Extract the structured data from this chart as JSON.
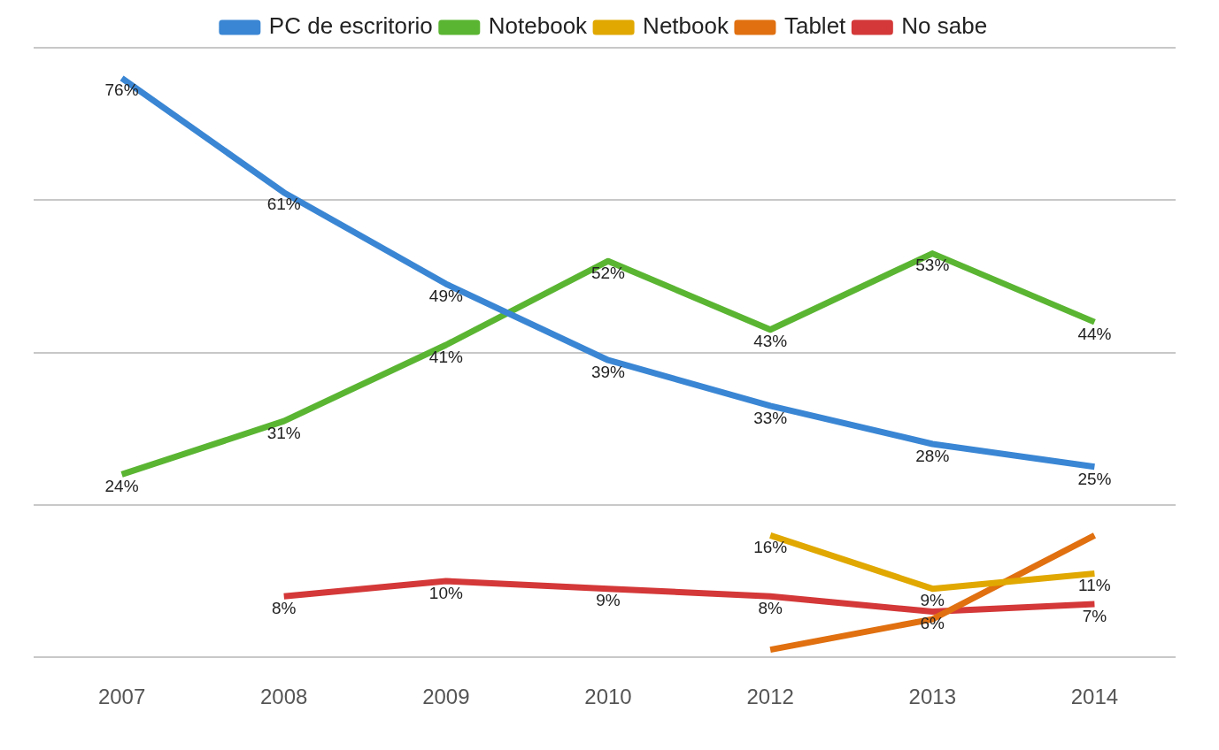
{
  "chart_data": {
    "type": "line",
    "categories": [
      "2007",
      "2008",
      "2009",
      "2010",
      "2012",
      "2013",
      "2014"
    ],
    "series": [
      {
        "name": "PC de escritorio",
        "color": "#3a86d4",
        "values": [
          76,
          61,
          49,
          39,
          33,
          28,
          25
        ],
        "value_labels": [
          "76%",
          "61%",
          "49%",
          "39%",
          "33%",
          "28%",
          "25%"
        ]
      },
      {
        "name": "Notebook",
        "color": "#5ab532",
        "values": [
          24,
          31,
          41,
          52,
          43,
          53,
          44
        ],
        "value_labels": [
          "24%",
          "31%",
          "41%",
          "52%",
          "43%",
          "53%",
          "44%"
        ]
      },
      {
        "name": "Netbook",
        "color": "#e0a800",
        "values": [
          null,
          null,
          null,
          null,
          16,
          9,
          11
        ],
        "value_labels": [
          null,
          null,
          null,
          null,
          "16%",
          "9%",
          "11%"
        ]
      },
      {
        "name": "Tablet",
        "color": "#e07010",
        "values": [
          null,
          null,
          null,
          null,
          1,
          5,
          16
        ],
        "value_labels": [
          null,
          null,
          null,
          null,
          null,
          null,
          null
        ]
      },
      {
        "name": "No sabe",
        "color": "#d43838",
        "values": [
          null,
          8,
          10,
          9,
          8,
          6,
          7
        ],
        "value_labels": [
          null,
          "8%",
          "10%",
          "9%",
          "8%",
          "6%",
          "7%"
        ]
      }
    ],
    "ylim": [
      0,
      80
    ],
    "yticks": [
      0,
      20,
      40,
      60,
      80
    ],
    "grid": "y",
    "tick_labels": "x",
    "legend": "top",
    "marker": "none",
    "line_style": "solid"
  }
}
